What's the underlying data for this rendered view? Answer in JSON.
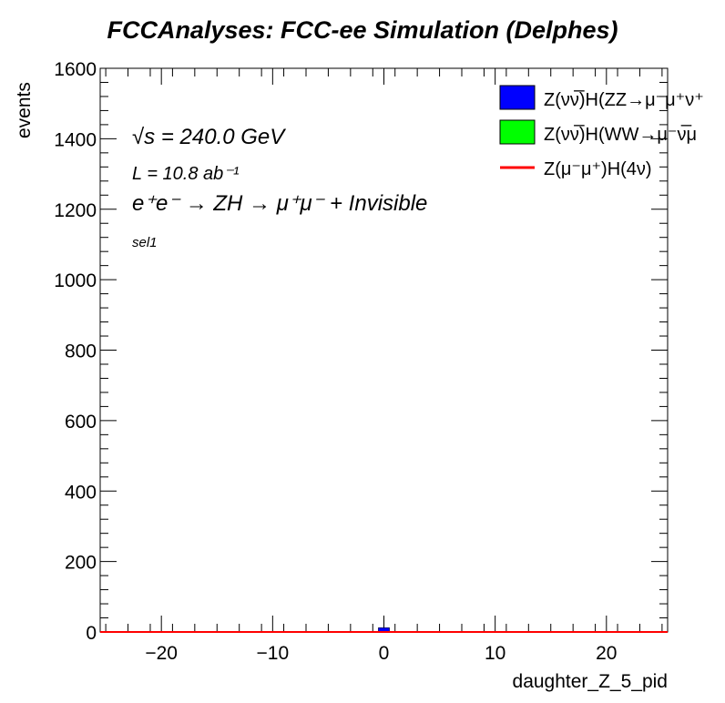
{
  "chart_data": {
    "type": "bar",
    "title": "FCCAnalyses: FCC-ee Simulation (Delphes)",
    "xlabel": "daughter_Z_5_pid",
    "ylabel": "events",
    "xlim": [
      -25.5,
      25.5
    ],
    "ylim": [
      0,
      1600
    ],
    "xticks": [
      -20,
      -10,
      0,
      10,
      20
    ],
    "xtick_labels": [
      "−20",
      "−10",
      "0",
      "10",
      "20"
    ],
    "yticks": [
      0,
      200,
      400,
      600,
      800,
      1000,
      1200,
      1400,
      1600
    ],
    "ytick_labels": [
      "0",
      "200",
      "400",
      "600",
      "800",
      "1000",
      "1200",
      "1400",
      "1600"
    ],
    "grid": false,
    "legend_position": "top-right",
    "series": [
      {
        "name": "Z(νν̅)H(ZZ→μ⁻μ⁺ν⁺",
        "kind": "stacked-bar",
        "color": "#0000ff",
        "x": [
          0
        ],
        "values": [
          12
        ]
      },
      {
        "name": "Z(νν̅)H(WW→μ⁻ν̅μ",
        "kind": "stacked-bar",
        "color": "#00ff00",
        "x": [
          0
        ],
        "values": [
          0
        ]
      },
      {
        "name": "Z(μ⁻μ⁺)H(4ν)",
        "kind": "line",
        "color": "#ff0000",
        "x": [
          0
        ],
        "values": [
          0
        ]
      }
    ],
    "annotations": {
      "sqrt_s": "√s = 240.0 GeV",
      "lumi": "L = 10.8 ab⁻¹",
      "process": "e⁺e⁻ → ZH → μ⁺μ⁻ + Invisible",
      "selection": "sel1"
    }
  }
}
